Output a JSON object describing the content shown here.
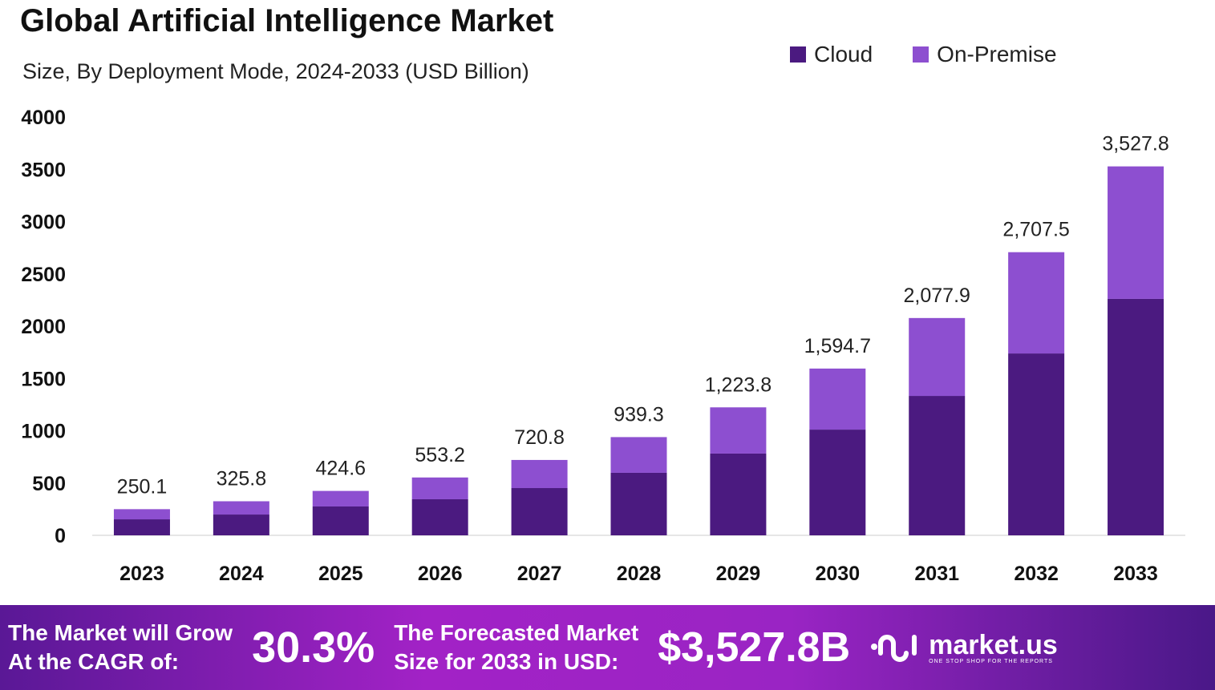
{
  "chart_data": {
    "type": "bar",
    "stacked": true,
    "title": "Global Artificial Intelligence Market",
    "subtitle": "Size, By Deployment Mode, 2024-2033 (USD Billion)",
    "categories": [
      "2023",
      "2024",
      "2025",
      "2026",
      "2027",
      "2028",
      "2029",
      "2030",
      "2031",
      "2032",
      "2033"
    ],
    "series": [
      {
        "name": "Cloud",
        "color": "#4b1a80",
        "values": [
          153,
          199,
          276,
          345,
          452,
          598,
          782,
          1011,
          1333,
          1739,
          2261
        ]
      },
      {
        "name": "On-Premise",
        "color": "#8d4fd0",
        "values": [
          97.1,
          126.8,
          148.6,
          208.2,
          268.8,
          341.3,
          441.8,
          583.7,
          744.9,
          968.5,
          1266.8
        ]
      }
    ],
    "totals": [
      250.1,
      325.8,
      424.6,
      553.2,
      720.8,
      939.3,
      1223.8,
      1594.7,
      2077.9,
      2707.5,
      3527.8
    ],
    "total_labels": [
      "250.1",
      "325.8",
      "424.6",
      "553.2",
      "720.8",
      "939.3",
      "1,223.8",
      "1,594.7",
      "2,077.9",
      "2,707.5",
      "3,527.8"
    ],
    "yticks": [
      "0",
      "500",
      "1000",
      "1500",
      "2000",
      "2500",
      "3000",
      "3500",
      "4000"
    ],
    "ylim": [
      0,
      4000
    ],
    "grid": false,
    "legend_position": "top-right"
  },
  "footer": {
    "cagr_label_line1": "The Market will Grow",
    "cagr_label_line2": "At the CAGR of:",
    "cagr_value": "30.3%",
    "forecast_label_line1": "The Forecasted Market",
    "forecast_label_line2": "Size for 2033 in USD:",
    "forecast_value": "$3,527.8B",
    "brand_name": "market.us",
    "brand_tagline": "ONE STOP SHOP FOR THE REPORTS"
  }
}
